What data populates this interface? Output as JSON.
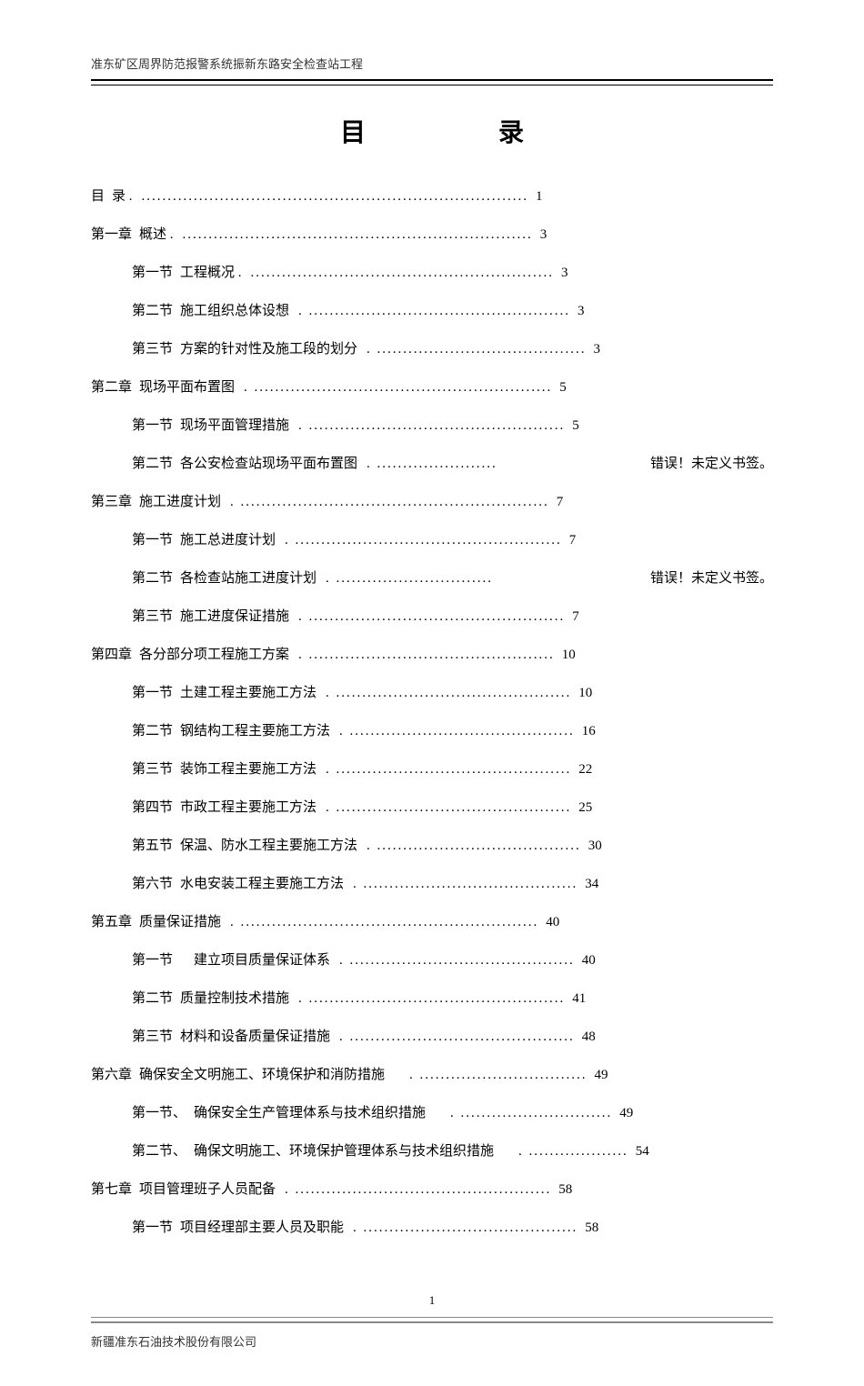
{
  "header": "准东矿区周界防范报警系统振新东路安全检查站工程",
  "title": "目　　录",
  "page_number": "1",
  "footer": "新疆准东石油技术股份有限公司",
  "error_text": "错误！未定义书签。",
  "toc": [
    {
      "level": 0,
      "label": "目",
      "text": "录 .",
      "dots": "..........................................................................",
      "page": "1"
    },
    {
      "level": 1,
      "label": "第一章",
      "text": "概述 .",
      "dots": "...................................................................",
      "page": "3"
    },
    {
      "level": 2,
      "label": "第一节",
      "text": "工程概况 .",
      "dots": "..........................................................",
      "page": "3"
    },
    {
      "level": 2,
      "label": "第二节",
      "text": "施工组织总体设想",
      "dots": ". ..................................................",
      "page": "3"
    },
    {
      "level": 2,
      "label": "第三节",
      "text": "方案的针对性及施工段的划分",
      "dots": ". ........................................",
      "page": "3"
    },
    {
      "level": 1,
      "label": "第二章",
      "text": "现场平面布置图",
      "dots": ". .........................................................",
      "page": "5"
    },
    {
      "level": 2,
      "label": "第一节",
      "text": "现场平面管理措施",
      "dots": ". .................................................",
      "page": "5"
    },
    {
      "level": 2,
      "label": "第二节",
      "text": "各公安检查站现场平面布置图",
      "dots": ". .......................",
      "page": "",
      "error": true
    },
    {
      "level": 1,
      "label": "第三章",
      "text": "施工进度计划",
      "dots": ". ...........................................................",
      "page": "7"
    },
    {
      "level": 2,
      "label": "第一节",
      "text": "施工总进度计划",
      "dots": ". ...................................................",
      "page": "7"
    },
    {
      "level": 2,
      "label": "第二节",
      "text": "各检查站施工进度计划",
      "dots": ". ..............................",
      "page": "",
      "error": true
    },
    {
      "level": 2,
      "label": "第三节",
      "text": "施工进度保证措施",
      "dots": ". .................................................",
      "page": "7"
    },
    {
      "level": 1,
      "label": "第四章",
      "text": "各分部分项工程施工方案",
      "dots": ". ...............................................",
      "page": "10"
    },
    {
      "level": 2,
      "label": "第一节",
      "text": "土建工程主要施工方法",
      "dots": ". .............................................",
      "page": "10"
    },
    {
      "level": 2,
      "label": "第二节",
      "text": "钢结构工程主要施工方法",
      "dots": ". ...........................................",
      "page": "16"
    },
    {
      "level": 2,
      "label": "第三节",
      "text": "装饰工程主要施工方法",
      "dots": ". .............................................",
      "page": "22"
    },
    {
      "level": 2,
      "label": "第四节",
      "text": "市政工程主要施工方法",
      "dots": ". .............................................",
      "page": "25"
    },
    {
      "level": 2,
      "label": "第五节",
      "text": "保温、防水工程主要施工方法",
      "dots": ". .......................................",
      "page": "30"
    },
    {
      "level": 2,
      "label": "第六节",
      "text": "水电安装工程主要施工方法",
      "dots": ". .........................................",
      "page": "34"
    },
    {
      "level": 1,
      "label": "第五章",
      "text": "质量保证措施",
      "dots": ". .........................................................",
      "page": "40"
    },
    {
      "level": 2,
      "label": "第一节",
      "text": "　建立项目质量保证体系",
      "dots": ". ...........................................",
      "page": "40"
    },
    {
      "level": 2,
      "label": "第二节",
      "text": "质量控制技术措施",
      "dots": ". .................................................",
      "page": "41"
    },
    {
      "level": 2,
      "label": "第三节",
      "text": "材料和设备质量保证措施",
      "dots": ". ...........................................",
      "page": "48"
    },
    {
      "level": 1,
      "label": "第六章",
      "text": "确保安全文明施工、环境保护和消防措施",
      "dots": "　. ................................",
      "page": "49"
    },
    {
      "level": 2,
      "label": "第一节、",
      "text": "确保安全生产管理体系与技术组织措施",
      "dots": "　. .............................",
      "page": "49"
    },
    {
      "level": 2,
      "label": "第二节、",
      "text": "确保文明施工、环境保护管理体系与技术组织措施",
      "dots": "　. ...................",
      "page": "54"
    },
    {
      "level": 1,
      "label": "第七章",
      "text": "项目管理班子人员配备",
      "dots": ". .................................................",
      "page": "58"
    },
    {
      "level": 2,
      "label": "第一节",
      "text": "项目经理部主要人员及职能",
      "dots": ". .........................................",
      "page": "58"
    }
  ]
}
